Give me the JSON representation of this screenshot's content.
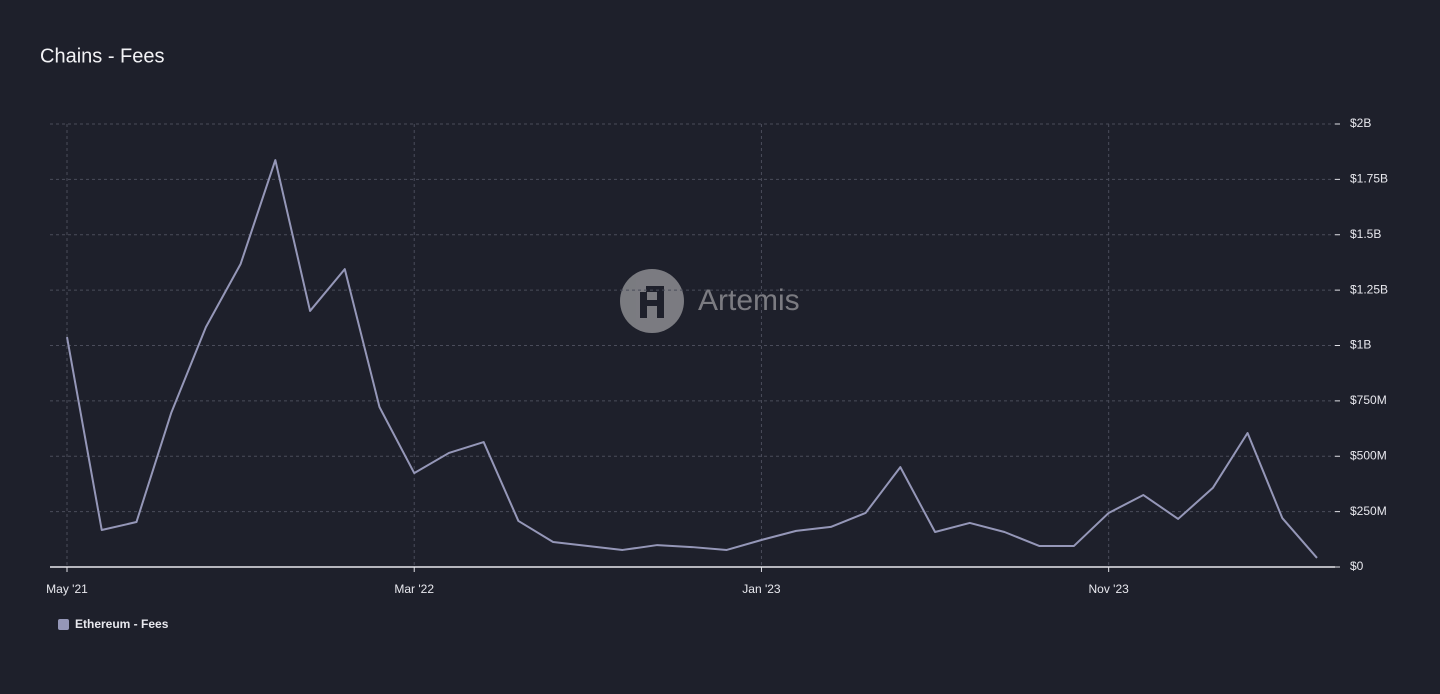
{
  "chart_data": {
    "type": "line",
    "title": "Chains - Fees",
    "watermark": "Artemis",
    "categories": [
      "May '21",
      null,
      null,
      null,
      null,
      null,
      null,
      null,
      null,
      null,
      "Mar '22",
      null,
      null,
      null,
      null,
      null,
      null,
      null,
      null,
      null,
      "Jan '23",
      null,
      null,
      null,
      null,
      null,
      null,
      null,
      null,
      null,
      "Nov '23",
      null,
      null,
      null,
      null,
      null,
      null
    ],
    "series": [
      {
        "name": "Ethereum - Fees",
        "color": "#9597b8",
        "values": [
          1038000000,
          167000000,
          203000000,
          695000000,
          1083000000,
          1368000000,
          1837000000,
          1156000000,
          1345000000,
          722000000,
          424000000,
          515000000,
          564000000,
          208000000,
          113000000,
          95000000,
          77000000,
          99000000,
          90000000,
          77000000,
          122000000,
          163000000,
          181000000,
          244000000,
          451000000,
          158000000,
          199000000,
          158000000,
          95000000,
          95000000,
          244000000,
          325000000,
          217000000,
          357000000,
          605000000,
          221000000,
          41000000
        ]
      }
    ],
    "ylim": [
      0,
      2000000000
    ],
    "yticks": [
      {
        "value": 0,
        "label": "$0"
      },
      {
        "value": 250000000,
        "label": "$250M"
      },
      {
        "value": 500000000,
        "label": "$500M"
      },
      {
        "value": 750000000,
        "label": "$750M"
      },
      {
        "value": 1000000000,
        "label": "$1B"
      },
      {
        "value": 1250000000,
        "label": "$1.25B"
      },
      {
        "value": 1500000000,
        "label": "$1.5B"
      },
      {
        "value": 1750000000,
        "label": "$1.75B"
      },
      {
        "value": 2000000000,
        "label": "$2B"
      }
    ],
    "grid": true
  }
}
